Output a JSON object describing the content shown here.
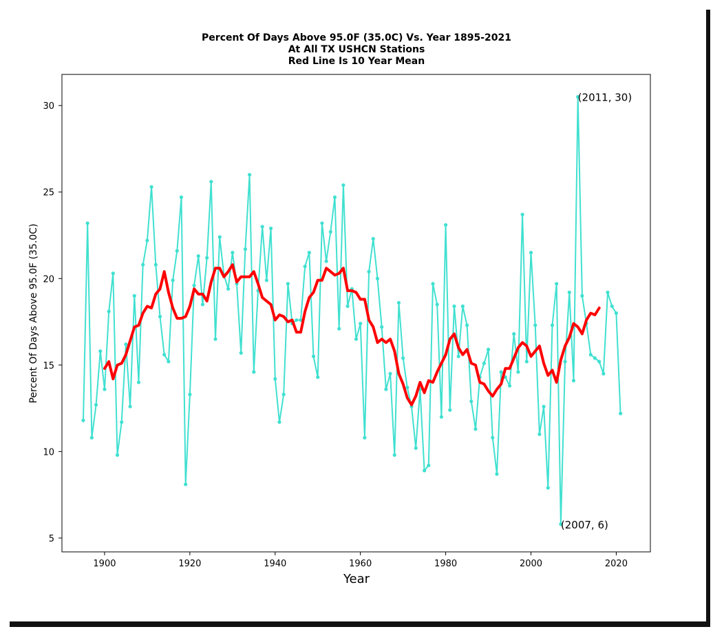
{
  "chart_data": {
    "type": "line",
    "title": "Percent Of Days Above 95.0F (35.0C) Vs. Year 1895-2021",
    "subtitle": [
      "At All TX USHCN Stations",
      "Red Line Is 10 Year Mean"
    ],
    "xlabel": "Year",
    "ylabel": "Percent Of Days Above 95.0F (35.0C)",
    "xlim": [
      1890,
      2028
    ],
    "ylim": [
      4.2,
      31.8
    ],
    "xticks": [
      1900,
      1920,
      1940,
      1960,
      1980,
      2000,
      2020
    ],
    "yticks": [
      5,
      10,
      15,
      20,
      25,
      30
    ],
    "grid": false,
    "series": [
      {
        "role": "annual",
        "color": "#40e0d0",
        "x": [
          1895,
          1896,
          1897,
          1898,
          1899,
          1900,
          1901,
          1902,
          1903,
          1904,
          1905,
          1906,
          1907,
          1908,
          1909,
          1910,
          1911,
          1912,
          1913,
          1914,
          1915,
          1916,
          1917,
          1918,
          1919,
          1920,
          1921,
          1922,
          1923,
          1924,
          1925,
          1926,
          1927,
          1928,
          1929,
          1930,
          1931,
          1932,
          1933,
          1934,
          1935,
          1936,
          1937,
          1938,
          1939,
          1940,
          1941,
          1942,
          1943,
          1944,
          1945,
          1946,
          1947,
          1948,
          1949,
          1950,
          1951,
          1952,
          1953,
          1954,
          1955,
          1956,
          1957,
          1958,
          1959,
          1960,
          1961,
          1962,
          1963,
          1964,
          1965,
          1966,
          1967,
          1968,
          1969,
          1970,
          1971,
          1972,
          1973,
          1974,
          1975,
          1976,
          1977,
          1978,
          1979,
          1980,
          1981,
          1982,
          1983,
          1984,
          1985,
          1986,
          1987,
          1988,
          1989,
          1990,
          1991,
          1992,
          1993,
          1994,
          1995,
          1996,
          1997,
          1998,
          1999,
          2000,
          2001,
          2002,
          2003,
          2004,
          2005,
          2006,
          2007,
          2008,
          2009,
          2010,
          2011,
          2012,
          2013,
          2014,
          2015,
          2016,
          2017,
          2018,
          2019,
          2020,
          2021
        ],
        "values": [
          11.8,
          23.2,
          10.8,
          12.7,
          15.8,
          13.6,
          18.1,
          20.3,
          9.8,
          11.7,
          16.2,
          12.6,
          19.0,
          14.0,
          20.8,
          22.2,
          25.3,
          20.8,
          17.8,
          15.6,
          15.2,
          19.9,
          21.6,
          24.7,
          8.1,
          13.3,
          19.6,
          21.3,
          18.5,
          21.2,
          25.6,
          16.5,
          22.4,
          20.2,
          19.4,
          21.5,
          19.7,
          15.7,
          21.7,
          26.0,
          14.6,
          19.3,
          23.0,
          19.9,
          22.9,
          14.2,
          11.7,
          13.3,
          19.7,
          17.4,
          17.6,
          17.6,
          20.7,
          21.5,
          15.5,
          14.3,
          23.2,
          21.0,
          22.7,
          24.7,
          17.1,
          25.4,
          18.4,
          19.4,
          16.5,
          17.4,
          10.8,
          20.4,
          22.3,
          20.0,
          17.2,
          13.6,
          14.5,
          9.8,
          18.6,
          15.4,
          13.7,
          12.6,
          10.2,
          13.6,
          8.9,
          9.2,
          19.7,
          18.5,
          12.0,
          23.1,
          12.4,
          18.4,
          15.5,
          18.4,
          17.3,
          12.9,
          11.3,
          14.3,
          15.1,
          15.9,
          10.8,
          8.7,
          14.6,
          14.3,
          13.8,
          16.8,
          14.6,
          23.7,
          15.2,
          21.5,
          17.3,
          11.0,
          12.6,
          7.9,
          17.3,
          19.7,
          5.8,
          15.2,
          19.2,
          14.1,
          30.5,
          19.0,
          17.4,
          15.6,
          15.4,
          15.2,
          14.5,
          19.2,
          18.4,
          18.0,
          12.2
        ]
      },
      {
        "role": "10-year mean",
        "color": "#ff0000",
        "x": [
          1900,
          1901,
          1902,
          1903,
          1904,
          1905,
          1906,
          1907,
          1908,
          1909,
          1910,
          1911,
          1912,
          1913,
          1914,
          1915,
          1916,
          1917,
          1918,
          1919,
          1920,
          1921,
          1922,
          1923,
          1924,
          1925,
          1926,
          1927,
          1928,
          1929,
          1930,
          1931,
          1932,
          1933,
          1934,
          1935,
          1936,
          1937,
          1938,
          1939,
          1940,
          1941,
          1942,
          1943,
          1944,
          1945,
          1946,
          1947,
          1948,
          1949,
          1950,
          1951,
          1952,
          1953,
          1954,
          1955,
          1956,
          1957,
          1958,
          1959,
          1960,
          1961,
          1962,
          1963,
          1964,
          1965,
          1966,
          1967,
          1968,
          1969,
          1970,
          1971,
          1972,
          1973,
          1974,
          1975,
          1976,
          1977,
          1978,
          1979,
          1980,
          1981,
          1982,
          1983,
          1984,
          1985,
          1986,
          1987,
          1988,
          1989,
          1990,
          1991,
          1992,
          1993,
          1994,
          1995,
          1996,
          1997,
          1998,
          1999,
          2000,
          2001,
          2002,
          2003,
          2004,
          2005,
          2006,
          2007,
          2008,
          2009,
          2010,
          2011,
          2012,
          2013,
          2014,
          2015,
          2016
        ],
        "values": [
          14.8,
          15.2,
          14.2,
          15.0,
          15.1,
          15.6,
          16.4,
          17.2,
          17.3,
          18.0,
          18.4,
          18.3,
          19.1,
          19.4,
          20.4,
          19.2,
          18.3,
          17.7,
          17.7,
          17.8,
          18.4,
          19.4,
          19.1,
          19.1,
          18.7,
          19.8,
          20.6,
          20.6,
          20.1,
          20.4,
          20.8,
          19.8,
          20.1,
          20.1,
          20.1,
          20.4,
          19.7,
          18.9,
          18.7,
          18.5,
          17.6,
          17.9,
          17.8,
          17.5,
          17.6,
          16.9,
          16.9,
          18.1,
          18.9,
          19.2,
          19.9,
          19.9,
          20.6,
          20.4,
          20.2,
          20.3,
          20.6,
          19.3,
          19.3,
          19.2,
          18.8,
          18.8,
          17.6,
          17.2,
          16.3,
          16.5,
          16.3,
          16.5,
          15.8,
          14.5,
          13.9,
          13.1,
          12.7,
          13.2,
          14.0,
          13.4,
          14.1,
          14.0,
          14.6,
          15.1,
          15.6,
          16.5,
          16.8,
          16.0,
          15.6,
          15.9,
          15.1,
          15.0,
          14.0,
          13.9,
          13.5,
          13.2,
          13.6,
          13.9,
          14.8,
          14.8,
          15.4,
          16.0,
          16.3,
          16.1,
          15.5,
          15.8,
          16.1,
          15.1,
          14.4,
          14.7,
          14.0,
          15.3,
          16.1,
          16.6,
          17.4,
          17.2,
          16.8,
          17.6,
          18.0,
          17.9,
          18.3
        ]
      }
    ],
    "annotations": [
      {
        "label": "(2011, 30)",
        "x": 2011,
        "y": 30.5
      },
      {
        "label": "(2007, 6)",
        "x": 2007,
        "y": 5.8
      }
    ]
  }
}
